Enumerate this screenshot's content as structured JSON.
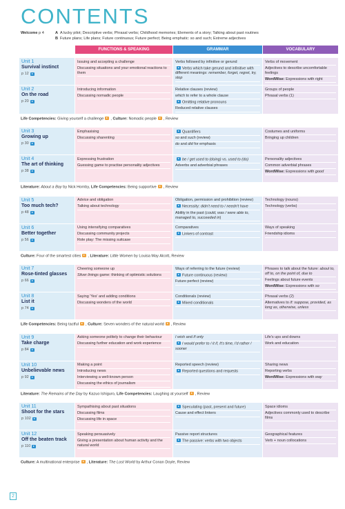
{
  "title": "CONTENTS",
  "welcome": {
    "label": "Welcome",
    "page": "p 4",
    "lines": [
      {
        "letter": "A",
        "text": "A lucky pilot; Descriptive verbs; Phrasal verbs; Childhood memories; Elements of a story; Talking about past routines"
      },
      {
        "letter": "B",
        "text": "Future plans; Life plans; Future continuous; Future perfect; Being emphatic: so and such; Extreme adjectives"
      }
    ]
  },
  "headers": [
    "FUNCTIONS & SPEAKING",
    "GRAMMAR",
    "VOCABULARY"
  ],
  "blocks": [
    {
      "units": [
        {
          "unit": "Unit 1",
          "title": "Survival instinct",
          "page": "p 12",
          "functions": [
            "Issuing and accepting a challenge",
            "Discussing situations and your emotional reactions to them"
          ],
          "grammar": [
            "Verbs followed by infinitive or gerund",
            {
              "runs": [
                {
                  "icon": true
                },
                "Verbs which take gerund and infinitive with different meanings: ",
                {
                  "i": "remember, forget, regret, try, stop"
                }
              ]
            }
          ],
          "vocabulary": [
            "Verbs of movement",
            "Adjectives to describe uncomfortable feelings",
            {
              "runs": [
                {
                  "b": "WordWise:"
                },
                " Expressions with right"
              ]
            }
          ]
        },
        {
          "unit": "Unit 2",
          "title": "On the road",
          "page": "p 20",
          "functions": [
            "Introducing information",
            "Discussing nomadic people"
          ],
          "grammar": [
            "Relative clauses (review)",
            {
              "runs": [
                {
                  "i": "which"
                },
                " to refer to a whole clause"
              ]
            },
            {
              "runs": [
                {
                  "icon": true
                },
                "Omitting relative pronouns"
              ]
            },
            "Reduced relative clauses"
          ],
          "vocabulary": [
            "Groups of people",
            "Phrasal verbs (1)"
          ]
        }
      ],
      "footer": [
        {
          "b": "Life Competencies:"
        },
        " Giving yourself a challenge",
        {
          "icon": true
        },
        ", ",
        {
          "b": "Culture:"
        },
        " Nomadic people",
        {
          "icon": true
        },
        ", Review"
      ]
    },
    {
      "units": [
        {
          "unit": "Unit 3",
          "title": "Growing up",
          "page": "p 30",
          "functions": [
            "Emphasising",
            "Discussing sharenting"
          ],
          "grammar": [
            {
              "runs": [
                {
                  "icon": true
                },
                "Quantifiers"
              ]
            },
            {
              "runs": [
                {
                  "i": "so"
                },
                " and ",
                {
                  "i": "such"
                },
                " (review)"
              ]
            },
            {
              "runs": [
                {
                  "i": "do"
                },
                " and ",
                {
                  "i": "did"
                },
                " for emphasis"
              ]
            }
          ],
          "vocabulary": [
            "Costumes and uniforms",
            "Bringing up children"
          ]
        },
        {
          "unit": "Unit 4",
          "title": "The art of thinking",
          "page": "p 38",
          "functions": [
            "Expressing frustration",
            "Guessing game to practise personality adjectives"
          ],
          "grammar": [
            {
              "runs": [
                {
                  "icon": true
                },
                {
                  "i": "be / get used to (doing)"
                },
                " vs. ",
                {
                  "i": "used to (do)"
                }
              ]
            },
            "Adverbs and adverbial phrases"
          ],
          "vocabulary": [
            "Personality adjectives",
            "Common adverbial phrases",
            {
              "runs": [
                {
                  "b": "WordWise:"
                },
                " Expressions with ",
                {
                  "i": "good"
                }
              ]
            }
          ]
        }
      ],
      "footer": [
        {
          "b": "Literature:"
        },
        " ",
        {
          "i": "About a Boy"
        },
        " by Nick Hornby, ",
        {
          "b": "Life Competencies:"
        },
        " Being supportive",
        {
          "icon": true
        },
        ", Review"
      ]
    },
    {
      "units": [
        {
          "unit": "Unit 5",
          "title": "Too much tech?",
          "page": "p 48",
          "functions": [
            "Advice and obligation",
            "Talking about technology"
          ],
          "grammar": [
            "Obligation, permission and prohibition (review)",
            {
              "runs": [
                {
                  "icon": true
                },
                "Necessity: ",
                {
                  "i": "didn't need to / needn't have"
                }
              ]
            },
            {
              "runs": [
                "Ability in the past (",
                {
                  "i": "could, was / were able to, managed to, succeeded in"
                },
                ")"
              ]
            }
          ],
          "vocabulary": [
            "Technology (nouns)",
            "Technology (verbs)"
          ]
        },
        {
          "unit": "Unit 6",
          "title": "Better together",
          "page": "p 56",
          "functions": [
            "Using intensifying comparatives",
            "Discussing community projects",
            "Role play: The missing suitcase"
          ],
          "grammar": [
            "Comparatives",
            {
              "runs": [
                {
                  "icon": true
                },
                "Linkers of contrast"
              ]
            }
          ],
          "vocabulary": [
            "Ways of speaking",
            "Friendship idioms"
          ]
        }
      ],
      "footer": [
        {
          "b": "Culture:"
        },
        " Four of the smartest cities",
        {
          "icon": true
        },
        ", ",
        {
          "b": "Literature:"
        },
        " ",
        {
          "i": "Little Women"
        },
        " by Louisa May Alcott, Review"
      ]
    },
    {
      "units": [
        {
          "unit": "Unit 7",
          "title": "Rose-tinted glasses",
          "page": "p 66",
          "functions": [
            "Cheering someone up",
            {
              "runs": [
                {
                  "i": "Silver linings"
                },
                " game: thinking of optimistic solutions"
              ]
            }
          ],
          "grammar": [
            "Ways of referring to the future (review)",
            {
              "runs": [
                {
                  "icon": true
                },
                "Future continuous (review)"
              ]
            },
            "Future perfect (review)"
          ],
          "vocabulary": [
            {
              "runs": [
                "Phrases to talk about the future: ",
                {
                  "i": "about to, off to, on the point of, due to"
                }
              ]
            },
            "Feelings about future events",
            {
              "runs": [
                {
                  "b": "WordWise:"
                },
                " Expressions with ",
                {
                  "i": "so"
                }
              ]
            }
          ]
        },
        {
          "unit": "Unit 8",
          "title": "List it",
          "page": "p 74",
          "functions": [
            "Saying 'Yes' and adding conditions",
            "Discussing wonders of the world"
          ],
          "grammar": [
            "Conditionals (review)",
            {
              "runs": [
                {
                  "icon": true
                },
                "Mixed conditionals"
              ]
            }
          ],
          "vocabulary": [
            "Phrasal verbs (2)",
            {
              "runs": [
                "Alternatives to ",
                {
                  "i": "if: suppose, provided, as long as, otherwise, unless"
                }
              ]
            }
          ]
        }
      ],
      "footer": [
        {
          "b": "Life Competencies:"
        },
        " Being tactful",
        {
          "icon": true
        },
        ", ",
        {
          "b": "Culture:"
        },
        " Seven wonders of the natural world",
        {
          "icon": true
        },
        ", Review"
      ]
    },
    {
      "units": [
        {
          "unit": "Unit 9",
          "title": "Take charge",
          "page": "p 84",
          "functions": [
            "Asking someone politely to change their behaviour",
            "Discussing further education and work experience"
          ],
          "grammar": [
            {
              "runs": [
                {
                  "i": "I wish"
                },
                " and ",
                {
                  "i": "If only"
                }
              ]
            },
            {
              "runs": [
                {
                  "icon": true
                },
                {
                  "i": "I would prefer to / it if, It's time, I'd rather / sooner"
                }
              ]
            }
          ],
          "vocabulary": [
            "Life's ups and downs",
            "Work and education"
          ]
        },
        {
          "unit": "Unit 10",
          "title": "Unbelievable news",
          "page": "p 92",
          "functions": [
            "Making a point",
            "Introducing news",
            "Interviewing a well-known person",
            "Discussing the ethics of journalism"
          ],
          "grammar": [
            "Reported speech (review)",
            {
              "runs": [
                {
                  "icon": true
                },
                "Reported questions and requests"
              ]
            }
          ],
          "vocabulary": [
            "Sharing news",
            "Reporting verbs",
            {
              "runs": [
                {
                  "b": "WordWise:"
                },
                " Expressions with ",
                {
                  "i": "way"
                }
              ]
            }
          ]
        }
      ],
      "footer": [
        {
          "b": "Literature:"
        },
        " ",
        {
          "i": "The Remains of the Day"
        },
        " by Kazuo Ishiguro, ",
        {
          "b": "Life Competencies:"
        },
        " Laughing at yourself",
        {
          "icon": true
        },
        ", Review"
      ]
    },
    {
      "units": [
        {
          "unit": "Unit 11",
          "title": "Shoot for the stars",
          "page": "p 102",
          "functions": [
            "Sympathising about past situations",
            "Discussing films",
            "Discussing life in space"
          ],
          "grammar": [
            {
              "runs": [
                {
                  "icon": true
                },
                "Speculating (past, present and future)"
              ]
            },
            "Cause and effect linkers"
          ],
          "vocabulary": [
            "Space idioms",
            "Adjectives commonly used to describe films"
          ]
        },
        {
          "unit": "Unit 12",
          "title": "Off the beaten track",
          "page": "p 110",
          "functions": [
            "Speaking persuasively",
            "Giving a presentation about human activity and the natural world"
          ],
          "grammar": [
            "Passive report structures",
            {
              "runs": [
                {
                  "icon": true
                },
                "The passive: verbs with two objects"
              ]
            }
          ],
          "vocabulary": [
            "Geographical features",
            "Verb + noun collocations"
          ]
        }
      ],
      "footer": [
        {
          "b": "Culture:"
        },
        " A multinational enterprise",
        {
          "icon": true
        },
        ", ",
        {
          "b": "Literature:"
        },
        " ",
        {
          "i": "The Lost World"
        },
        " by Arthur Conan Doyle, Review"
      ]
    }
  ],
  "page_number": "2"
}
